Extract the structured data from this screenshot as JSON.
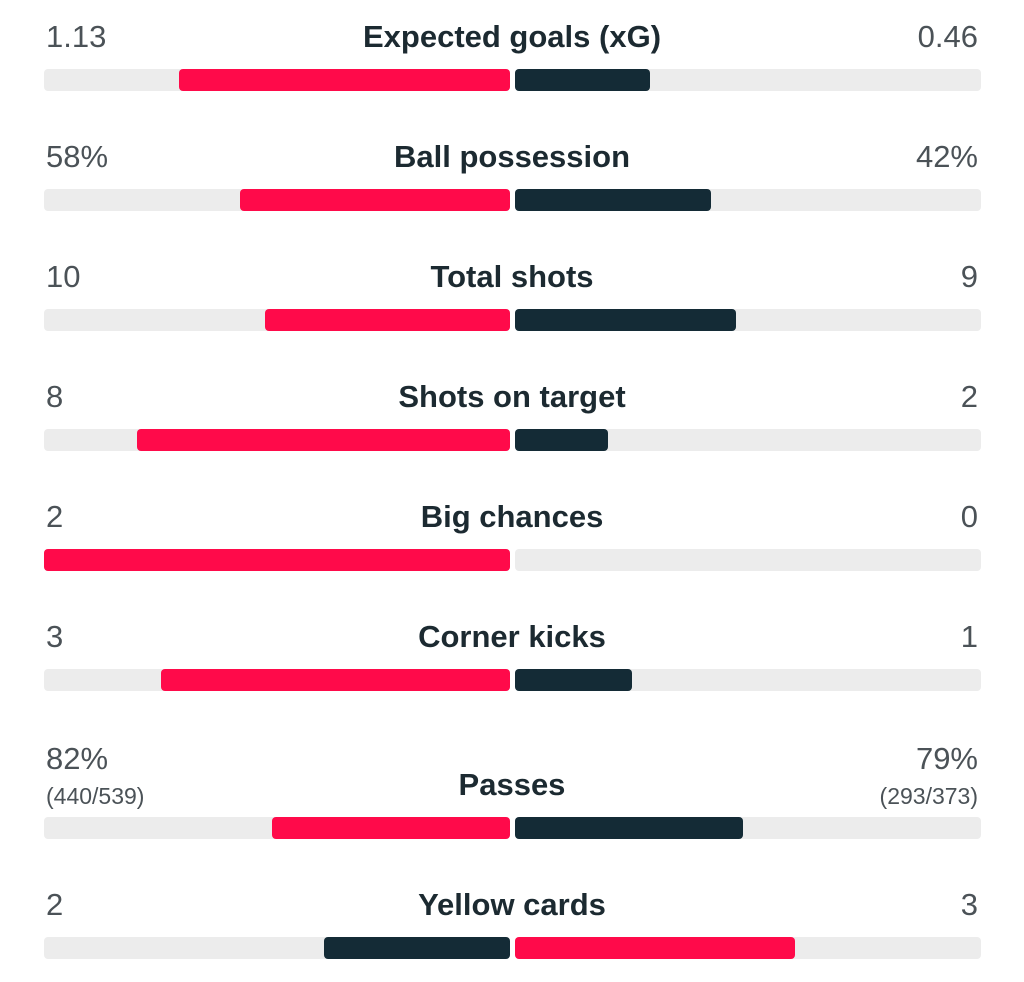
{
  "colors": {
    "home": "#ff0a4a",
    "away": "#142b36",
    "track": "#ececec"
  },
  "stats": [
    {
      "label": "Expected goals (xG)",
      "home": "1.13",
      "away": "0.46",
      "home_share": 0.711,
      "away_share": 0.289,
      "home_color": "home",
      "away_color": "away"
    },
    {
      "label": "Ball possession",
      "home": "58%",
      "away": "42%",
      "home_share": 0.58,
      "away_share": 0.42,
      "home_color": "home",
      "away_color": "away"
    },
    {
      "label": "Total shots",
      "home": "10",
      "away": "9",
      "home_share": 0.526,
      "away_share": 0.474,
      "home_color": "home",
      "away_color": "away"
    },
    {
      "label": "Shots on target",
      "home": "8",
      "away": "2",
      "home_share": 0.8,
      "away_share": 0.2,
      "home_color": "home",
      "away_color": "away"
    },
    {
      "label": "Big chances",
      "home": "2",
      "away": "0",
      "home_share": 1.0,
      "away_share": 0.0,
      "home_color": "home",
      "away_color": "away"
    },
    {
      "label": "Corner kicks",
      "home": "3",
      "away": "1",
      "home_share": 0.75,
      "away_share": 0.25,
      "home_color": "home",
      "away_color": "away"
    },
    {
      "label": "Passes",
      "home": "82%",
      "away": "79%",
      "home_sub": "(440/539)",
      "away_sub": "(293/373)",
      "home_share": 0.51,
      "away_share": 0.49,
      "home_color": "home",
      "away_color": "away"
    },
    {
      "label": "Yellow cards",
      "home": "2",
      "away": "3",
      "home_share": 0.4,
      "away_share": 0.6,
      "home_color": "away",
      "away_color": "home"
    }
  ]
}
